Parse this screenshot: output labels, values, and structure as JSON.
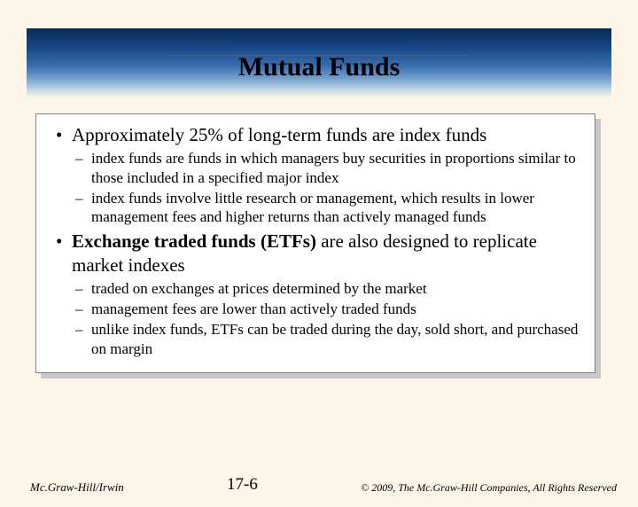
{
  "title": "Mutual Funds",
  "bullets": [
    {
      "text": "Approximately 25% of long-term funds are index funds",
      "sub": [
        "index funds are funds in which managers buy securities in proportions similar to those included in a specified major index",
        "index funds involve little research or management, which results in lower management fees and higher returns than actively managed funds"
      ]
    },
    {
      "prefix": "Exchange traded funds (ETFs)",
      "suffix": " are also designed to replicate market indexes",
      "sub": [
        "traded on exchanges at prices determined by the market",
        "management fees are lower than actively traded funds",
        "unlike index funds, ETFs can be traded during the day, sold short, and purchased on margin"
      ]
    }
  ],
  "footer": {
    "left": "Mc.Graw-Hill/Irwin",
    "center": "17-6",
    "right": "© 2009, The Mc.Graw-Hill Companies, All Rights Reserved"
  }
}
